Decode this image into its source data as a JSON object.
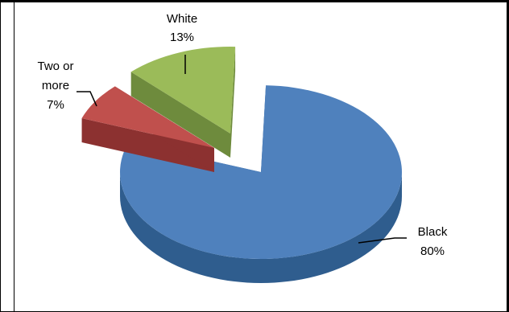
{
  "chart_data": {
    "type": "pie",
    "style": "3d-exploded",
    "slices": [
      {
        "label": "Black",
        "value": 80,
        "pct_label": "80%",
        "color": "#4F81BD",
        "color_side": "#2F5D8E"
      },
      {
        "label": "Two or more",
        "label_lines": [
          "Two or",
          "more"
        ],
        "value": 7,
        "pct_label": "7%",
        "color": "#C0504D",
        "color_side": "#8C3130"
      },
      {
        "label": "White",
        "value": 13,
        "pct_label": "13%",
        "color": "#9BBB59",
        "color_side": "#6E8B3D"
      }
    ],
    "legend": "none",
    "title": ""
  }
}
